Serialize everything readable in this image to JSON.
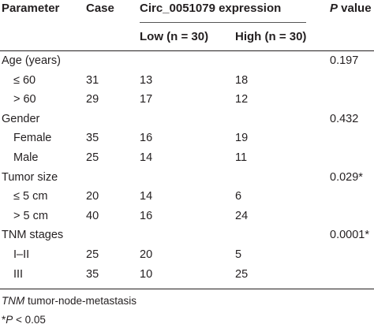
{
  "table": {
    "headers": {
      "parameter": "Parameter",
      "case": "Case",
      "expression": "Circ_0051079 expression",
      "low": "Low (n = 30)",
      "high": "High (n = 30)",
      "p_value_italic": "P",
      "p_value_rest": " value"
    },
    "rows": [
      {
        "param": "Age (years)",
        "case": "",
        "low": "",
        "high": "",
        "p": "0.197"
      },
      {
        "param": "≤ 60",
        "case": "31",
        "low": "13",
        "high": "18",
        "p": ""
      },
      {
        "param": "> 60",
        "case": "29",
        "low": "17",
        "high": "12",
        "p": ""
      },
      {
        "param": "Gender",
        "case": "",
        "low": "",
        "high": "",
        "p": "0.432"
      },
      {
        "param": "Female",
        "case": "35",
        "low": "16",
        "high": "19",
        "p": ""
      },
      {
        "param": "Male",
        "case": "25",
        "low": "14",
        "high": "11",
        "p": ""
      },
      {
        "param": "Tumor size",
        "case": "",
        "low": "",
        "high": "",
        "p": "0.029*"
      },
      {
        "param": "≤ 5 cm",
        "case": "20",
        "low": "14",
        "high": "6",
        "p": ""
      },
      {
        "param": "> 5 cm",
        "case": "40",
        "low": "16",
        "high": "24",
        "p": ""
      },
      {
        "param": "TNM stages",
        "case": "",
        "low": "",
        "high": "",
        "p": "0.0001*"
      },
      {
        "param": "I–II",
        "case": "25",
        "low": "20",
        "high": "5",
        "p": ""
      },
      {
        "param": "III",
        "case": "35",
        "low": "10",
        "high": "25",
        "p": ""
      }
    ]
  },
  "footnotes": {
    "tnm_abbr": "TNM",
    "tnm_text": " tumor-node-metastasis",
    "sig_prefix": "*",
    "sig_p": "P",
    "sig_text": " < 0.05"
  }
}
